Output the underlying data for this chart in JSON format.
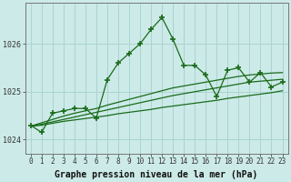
{
  "title": "Graphe pression niveau de la mer (hPa)",
  "x_hours": [
    0,
    1,
    2,
    3,
    4,
    5,
    6,
    7,
    8,
    9,
    10,
    11,
    12,
    13,
    14,
    15,
    16,
    17,
    18,
    19,
    20,
    21,
    22,
    23
  ],
  "y_jagged": [
    1024.3,
    1024.15,
    1024.55,
    1024.6,
    1024.65,
    1024.65,
    1024.45,
    1025.25,
    1025.6,
    1025.8,
    1026.0,
    1026.3,
    1026.55,
    1026.1,
    1025.55,
    1025.55,
    1025.35,
    1024.9,
    1025.45,
    1025.5,
    1025.2,
    1025.4,
    1025.1,
    1025.2
  ],
  "y_line1": [
    1024.28,
    1024.3,
    1024.34,
    1024.38,
    1024.41,
    1024.44,
    1024.47,
    1024.5,
    1024.54,
    1024.57,
    1024.6,
    1024.63,
    1024.67,
    1024.7,
    1024.73,
    1024.76,
    1024.79,
    1024.82,
    1024.86,
    1024.89,
    1024.92,
    1024.95,
    1024.98,
    1025.02
  ],
  "y_line2": [
    1024.28,
    1024.32,
    1024.37,
    1024.42,
    1024.47,
    1024.52,
    1024.57,
    1024.62,
    1024.67,
    1024.72,
    1024.77,
    1024.82,
    1024.87,
    1024.92,
    1024.96,
    1025.0,
    1025.04,
    1025.08,
    1025.12,
    1025.16,
    1025.2,
    1025.22,
    1025.24,
    1025.26
  ],
  "y_line3": [
    1024.28,
    1024.35,
    1024.42,
    1024.49,
    1024.55,
    1024.6,
    1024.65,
    1024.72,
    1024.78,
    1024.84,
    1024.9,
    1024.96,
    1025.02,
    1025.08,
    1025.12,
    1025.16,
    1025.2,
    1025.24,
    1025.28,
    1025.32,
    1025.35,
    1025.37,
    1025.39,
    1025.4
  ],
  "bg_color": "#cceae8",
  "grid_color": "#aad4d0",
  "line_color": "#1a6b1a",
  "ylim_min": 1023.7,
  "ylim_max": 1026.85,
  "yticks": [
    1024,
    1025,
    1026
  ],
  "ytick_labels": [
    "1024",
    "1025",
    "1026"
  ],
  "title_fontsize": 7,
  "tick_fontsize": 6
}
